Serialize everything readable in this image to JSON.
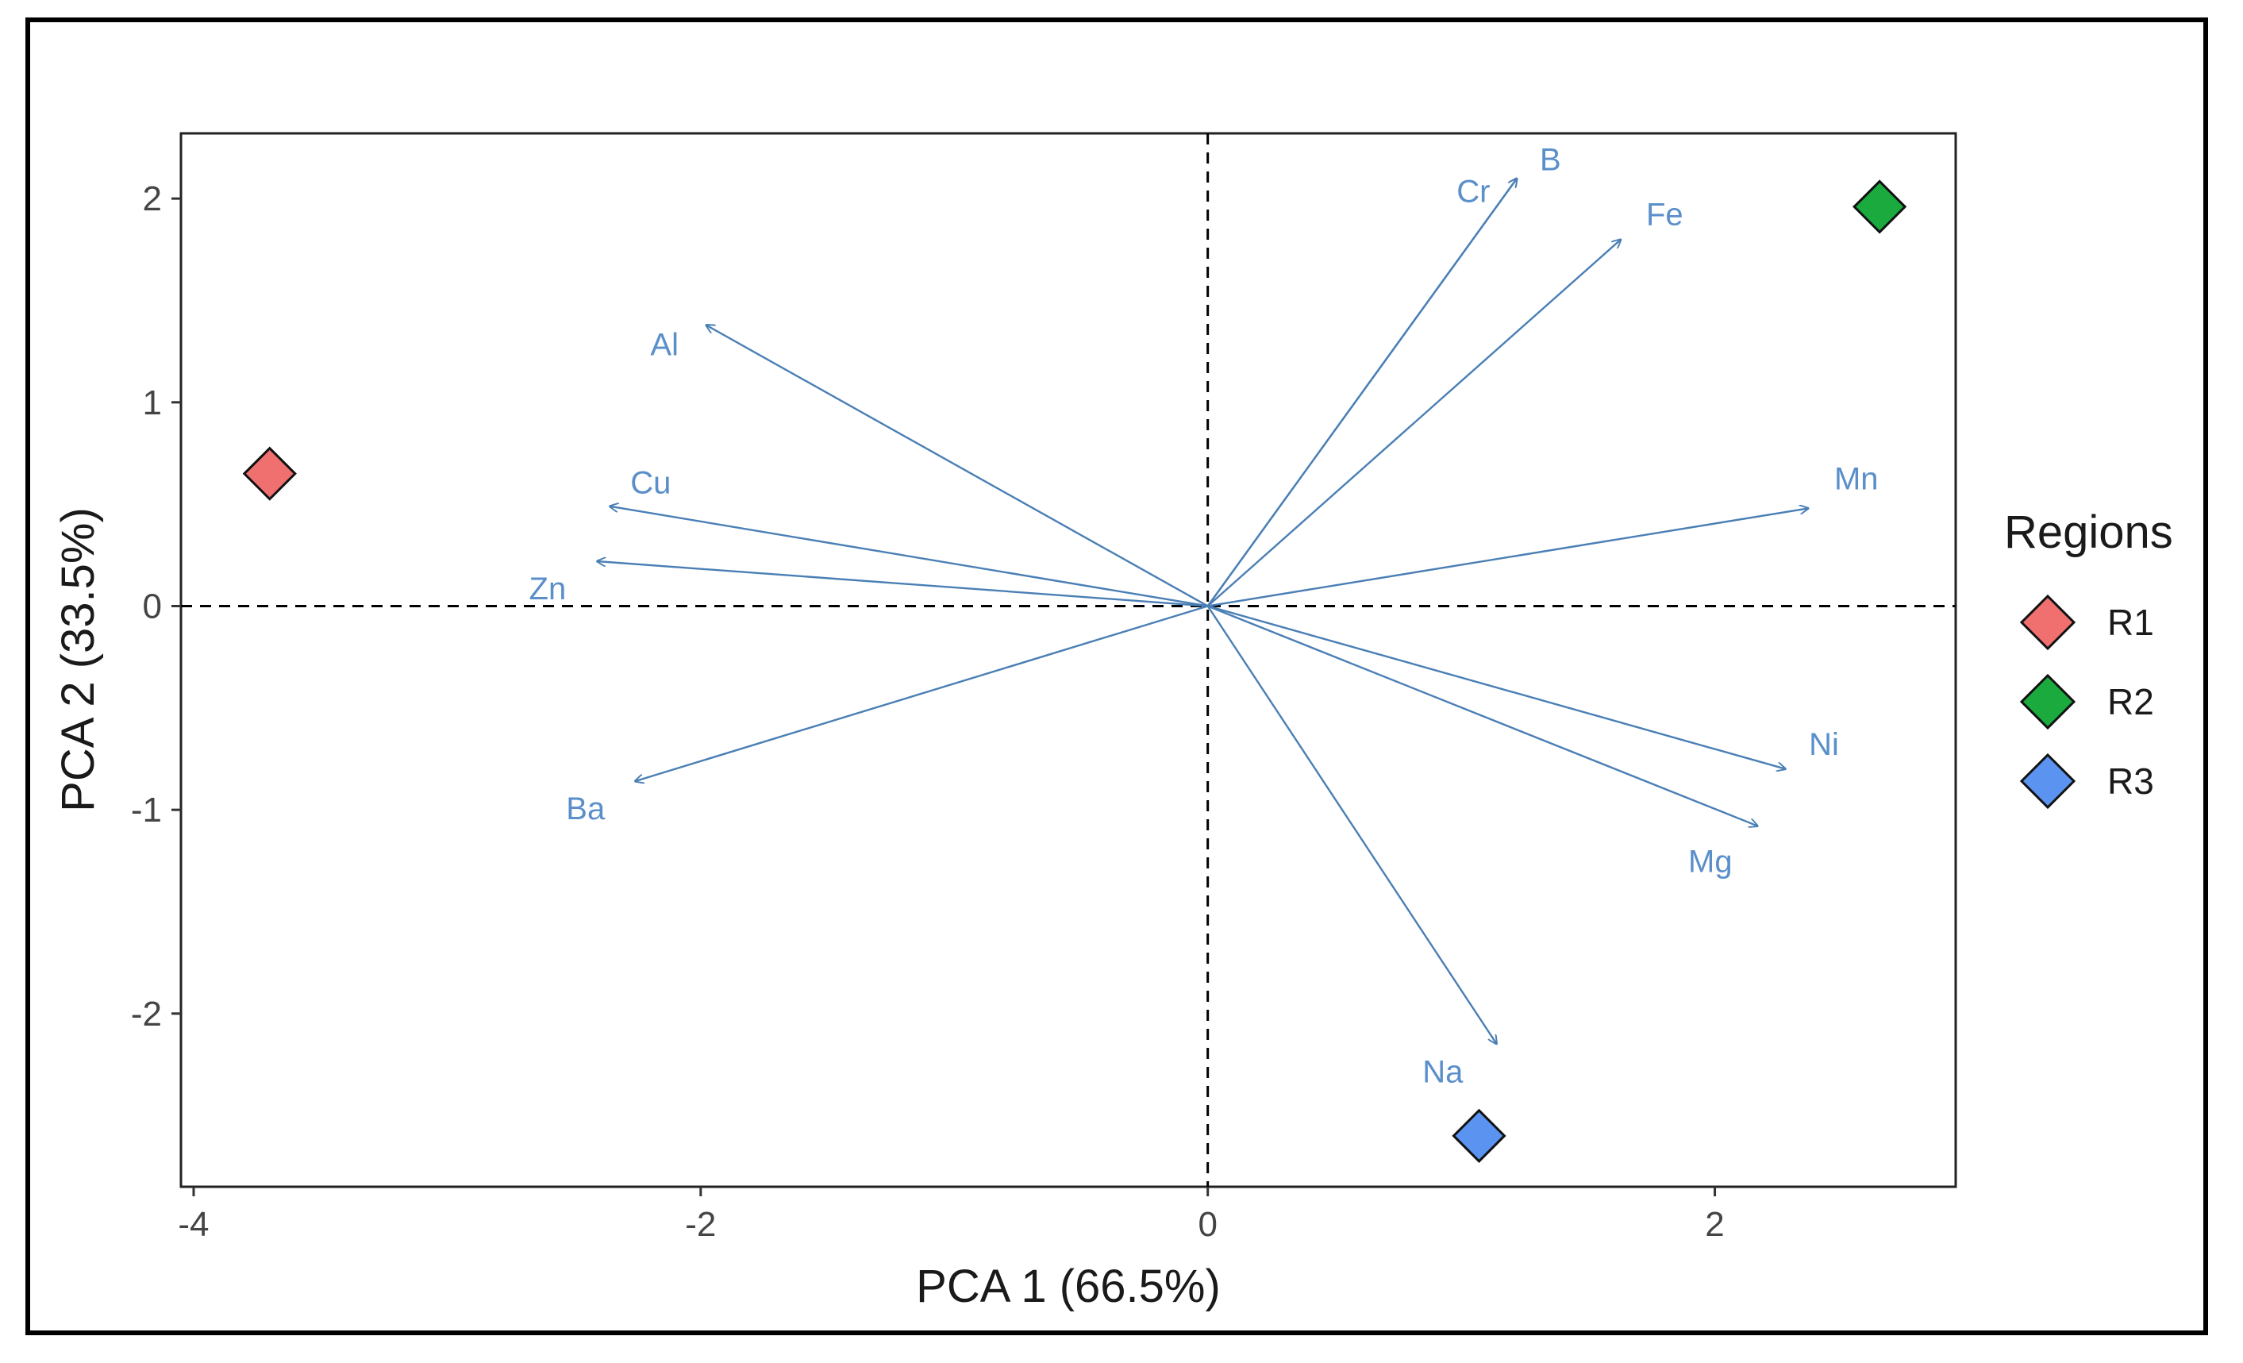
{
  "chart_data": {
    "type": "scatter",
    "subtype": "pca-biplot",
    "xlabel": "PCA 1 (66.5%)",
    "ylabel": "PCA 2 (33.5%)",
    "xlim": [
      -4.05,
      2.95
    ],
    "ylim": [
      -2.85,
      2.32
    ],
    "xticks": [
      -4,
      -2,
      0,
      2
    ],
    "yticks": [
      -2,
      -1,
      0,
      1,
      2
    ],
    "reference_lines": {
      "x": 0,
      "y": 0,
      "style": "dashed"
    },
    "grid": false,
    "arrow_color": "#4a7fb5",
    "label_color": "#5a8fca",
    "loadings": [
      {
        "name": "Cr",
        "x": 1.22,
        "y": 2.1
      },
      {
        "name": "B",
        "x": 1.22,
        "y": 2.1
      },
      {
        "name": "Fe",
        "x": 1.63,
        "y": 1.8
      },
      {
        "name": "Al",
        "x": -1.98,
        "y": 1.38
      },
      {
        "name": "Cu",
        "x": -2.36,
        "y": 0.49
      },
      {
        "name": "Zn",
        "x": -2.41,
        "y": 0.22
      },
      {
        "name": "Mn",
        "x": 2.37,
        "y": 0.48
      },
      {
        "name": "Ba",
        "x": -2.26,
        "y": -0.86
      },
      {
        "name": "Ni",
        "x": 2.28,
        "y": -0.8
      },
      {
        "name": "Mg",
        "x": 2.17,
        "y": -1.08
      },
      {
        "name": "Na",
        "x": 1.14,
        "y": -2.15
      }
    ],
    "series": [
      {
        "name": "R1",
        "x": -3.7,
        "y": 0.65,
        "color": "#f07070"
      },
      {
        "name": "R2",
        "x": 2.65,
        "y": 1.96,
        "color": "#1aaa3e"
      },
      {
        "name": "R3",
        "x": 1.07,
        "y": -2.6,
        "color": "#5b93f0"
      }
    ],
    "legend": {
      "title": "Regions",
      "position": "right"
    }
  }
}
